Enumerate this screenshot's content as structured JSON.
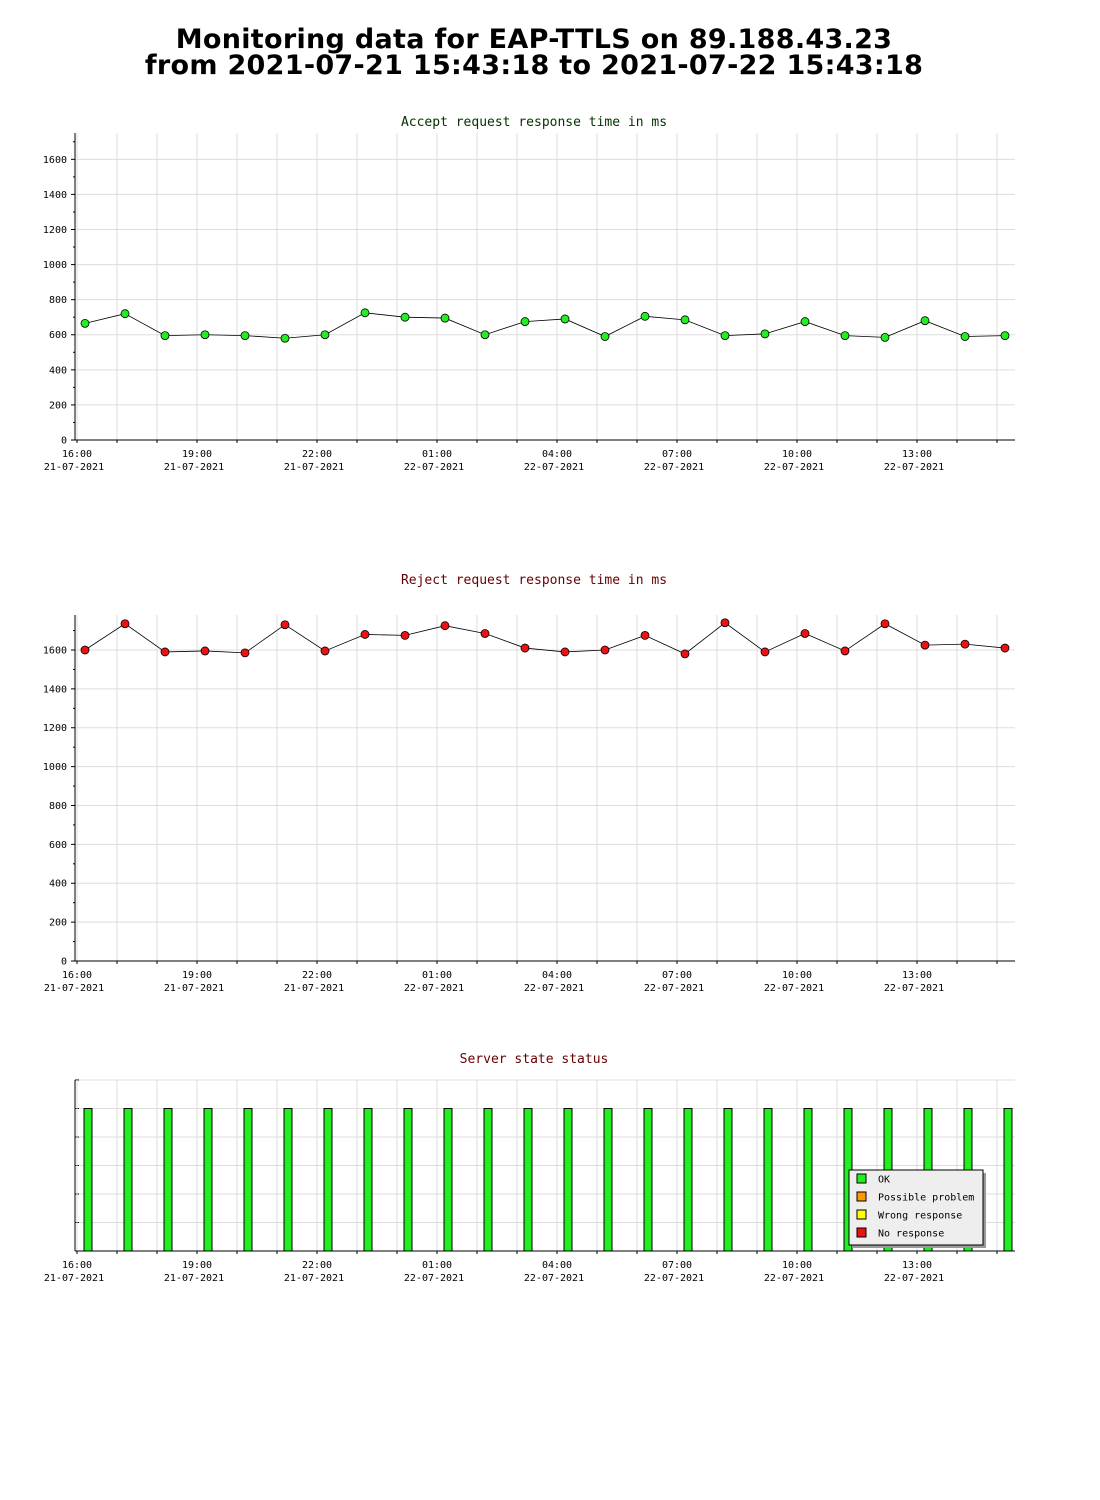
{
  "page": {
    "title_line_1": "Monitoring data for EAP-TTLS on 89.188.43.23",
    "title_line_2": "from 2021-07-21 15:43:18 to 2021-07-22 15:43:18"
  },
  "colors": {
    "accept_title": "#003300",
    "reject_title": "#660000",
    "status_title": "#660000",
    "accept_marker": "#22ee22",
    "reject_marker": "#ee1111",
    "bar_ok": "#22ee22",
    "gridline": "#dddddd"
  },
  "chart_data": [
    {
      "type": "line",
      "title": "Accept request response time in ms",
      "xlabel": "",
      "ylabel": "",
      "ylim": [
        0,
        1750
      ],
      "yticks": [
        0,
        200,
        400,
        600,
        800,
        1000,
        1200,
        1400,
        1600
      ],
      "grid": true,
      "x_tick_labels": [
        {
          "time": "16:00",
          "date": "21-07-2021"
        },
        {
          "time": "19:00",
          "date": "21-07-2021"
        },
        {
          "time": "22:00",
          "date": "21-07-2021"
        },
        {
          "time": "01:00",
          "date": "22-07-2021"
        },
        {
          "time": "04:00",
          "date": "22-07-2021"
        },
        {
          "time": "07:00",
          "date": "22-07-2021"
        },
        {
          "time": "10:00",
          "date": "22-07-2021"
        },
        {
          "time": "13:00",
          "date": "22-07-2021"
        }
      ],
      "x": [
        "2021-07-21 16:00",
        "2021-07-21 17:00",
        "2021-07-21 18:00",
        "2021-07-21 19:00",
        "2021-07-21 20:00",
        "2021-07-21 21:00",
        "2021-07-21 22:00",
        "2021-07-21 23:00",
        "2021-07-22 00:00",
        "2021-07-22 01:00",
        "2021-07-22 02:00",
        "2021-07-22 03:00",
        "2021-07-22 04:00",
        "2021-07-22 05:00",
        "2021-07-22 06:00",
        "2021-07-22 07:00",
        "2021-07-22 08:00",
        "2021-07-22 09:00",
        "2021-07-22 10:00",
        "2021-07-22 11:00",
        "2021-07-22 12:00",
        "2021-07-22 13:00",
        "2021-07-22 14:00",
        "2021-07-22 15:00"
      ],
      "series": [
        {
          "values": [
            665,
            720,
            595,
            600,
            595,
            580,
            600,
            725,
            700,
            695,
            600,
            675,
            690,
            590,
            705,
            685,
            595,
            605,
            675,
            595,
            585,
            680,
            590,
            595
          ]
        }
      ]
    },
    {
      "type": "line",
      "title": "Reject request response time in ms",
      "xlabel": "",
      "ylabel": "",
      "ylim": [
        0,
        1780
      ],
      "yticks": [
        0,
        200,
        400,
        600,
        800,
        1000,
        1200,
        1400,
        1600
      ],
      "grid": true,
      "x_tick_labels": [
        {
          "time": "16:00",
          "date": "21-07-2021"
        },
        {
          "time": "19:00",
          "date": "21-07-2021"
        },
        {
          "time": "22:00",
          "date": "21-07-2021"
        },
        {
          "time": "01:00",
          "date": "22-07-2021"
        },
        {
          "time": "04:00",
          "date": "22-07-2021"
        },
        {
          "time": "07:00",
          "date": "22-07-2021"
        },
        {
          "time": "10:00",
          "date": "22-07-2021"
        },
        {
          "time": "13:00",
          "date": "22-07-2021"
        }
      ],
      "x": [
        "2021-07-21 16:00",
        "2021-07-21 17:00",
        "2021-07-21 18:00",
        "2021-07-21 19:00",
        "2021-07-21 20:00",
        "2021-07-21 21:00",
        "2021-07-21 22:00",
        "2021-07-21 23:00",
        "2021-07-22 00:00",
        "2021-07-22 01:00",
        "2021-07-22 02:00",
        "2021-07-22 03:00",
        "2021-07-22 04:00",
        "2021-07-22 05:00",
        "2021-07-22 06:00",
        "2021-07-22 07:00",
        "2021-07-22 08:00",
        "2021-07-22 09:00",
        "2021-07-22 10:00",
        "2021-07-22 11:00",
        "2021-07-22 12:00",
        "2021-07-22 13:00",
        "2021-07-22 14:00",
        "2021-07-22 15:00"
      ],
      "series": [
        {
          "values": [
            1600,
            1735,
            1590,
            1595,
            1585,
            1730,
            1595,
            1680,
            1675,
            1725,
            1685,
            1610,
            1590,
            1600,
            1675,
            1580,
            1740,
            1590,
            1685,
            1595,
            1735,
            1625,
            1630,
            1610
          ]
        }
      ]
    },
    {
      "type": "bar",
      "title": "Server state status",
      "xlabel": "",
      "ylabel": "",
      "grid": true,
      "legend_position": "bottom-right",
      "legend": [
        {
          "label": "OK",
          "color": "#22ee22"
        },
        {
          "label": "Possible problem",
          "color": "#ff9900"
        },
        {
          "label": "Wrong response",
          "color": "#ffff00"
        },
        {
          "label": "No response",
          "color": "#ee1111"
        }
      ],
      "x_tick_labels": [
        {
          "time": "16:00",
          "date": "21-07-2021"
        },
        {
          "time": "19:00",
          "date": "21-07-2021"
        },
        {
          "time": "22:00",
          "date": "21-07-2021"
        },
        {
          "time": "01:00",
          "date": "22-07-2021"
        },
        {
          "time": "04:00",
          "date": "22-07-2021"
        },
        {
          "time": "07:00",
          "date": "22-07-2021"
        },
        {
          "time": "10:00",
          "date": "22-07-2021"
        },
        {
          "time": "13:00",
          "date": "22-07-2021"
        }
      ],
      "x": [
        "2021-07-21 16:00",
        "2021-07-21 17:00",
        "2021-07-21 18:00",
        "2021-07-21 19:00",
        "2021-07-21 20:00",
        "2021-07-21 21:00",
        "2021-07-21 22:00",
        "2021-07-21 23:00",
        "2021-07-22 00:00",
        "2021-07-22 01:00",
        "2021-07-22 02:00",
        "2021-07-22 03:00",
        "2021-07-22 04:00",
        "2021-07-22 05:00",
        "2021-07-22 06:00",
        "2021-07-22 07:00",
        "2021-07-22 08:00",
        "2021-07-22 09:00",
        "2021-07-22 10:00",
        "2021-07-22 11:00",
        "2021-07-22 12:00",
        "2021-07-22 13:00",
        "2021-07-22 14:00",
        "2021-07-22 15:00"
      ],
      "states": [
        "OK",
        "OK",
        "OK",
        "OK",
        "OK",
        "OK",
        "OK",
        "OK",
        "OK",
        "OK",
        "OK",
        "OK",
        "OK",
        "OK",
        "OK",
        "OK",
        "OK",
        "OK",
        "OK",
        "OK",
        "OK",
        "OK",
        "OK",
        "OK"
      ]
    }
  ]
}
